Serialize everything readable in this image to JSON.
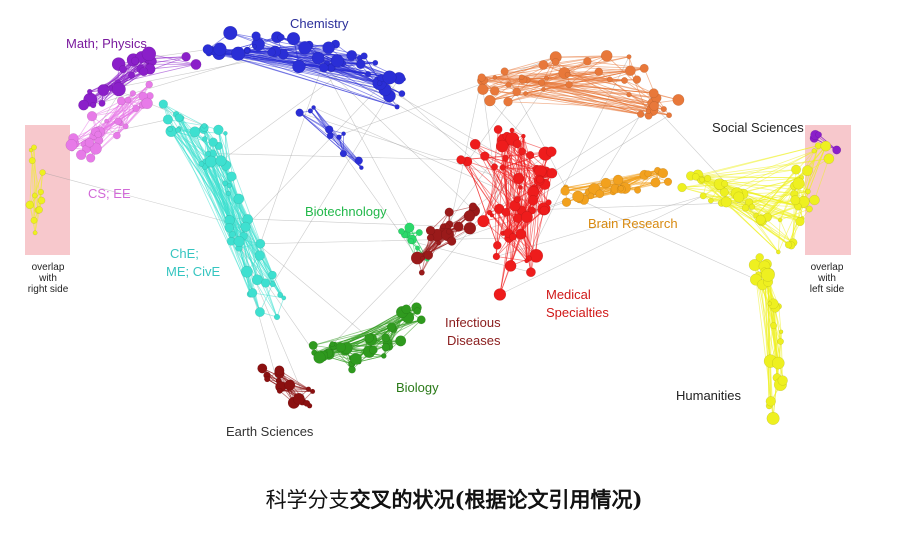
{
  "clusters": {
    "chemistry": {
      "label": "Chemistry",
      "color": "#2a2ed6"
    },
    "math_physics": {
      "label": "Math; Physics",
      "color": "#8a1fc9"
    },
    "cs_ee": {
      "label": "CS; EE",
      "color": "#e77ae8"
    },
    "che_me_cive": {
      "label_lines": [
        "ChE;",
        "ME; CivE"
      ],
      "color": "#3ee0d0"
    },
    "biotechnology": {
      "label": "Biotechnology",
      "color": "#2bd86a"
    },
    "biology": {
      "label": "Biology",
      "color": "#2f9a1e"
    },
    "earth_sciences": {
      "label": "Earth Sciences",
      "color": "#8b1010"
    },
    "infectious_diseases": {
      "label_lines": [
        "Infectious",
        "Diseases"
      ],
      "color": "#9a1a1a"
    },
    "medical_specialties": {
      "label_lines": [
        "Medical",
        "Specialties"
      ],
      "color": "#ee1c1c"
    },
    "brain_research": {
      "label": "Brain Research",
      "color": "#f2a11e"
    },
    "research_orange": {
      "color": "#e8783a"
    },
    "social_sciences": {
      "label": "Social Sciences",
      "color": "#eef020"
    },
    "humanities": {
      "label": "Humanities",
      "color": "#eef020"
    }
  },
  "overlap_left": {
    "lines": [
      "overlap",
      "with",
      "right side"
    ]
  },
  "overlap_right": {
    "lines": [
      "overlap",
      "with",
      "left side"
    ]
  },
  "caption": {
    "normal": "科学分支",
    "bold": "交叉的状况(根据论文引用情况)"
  }
}
